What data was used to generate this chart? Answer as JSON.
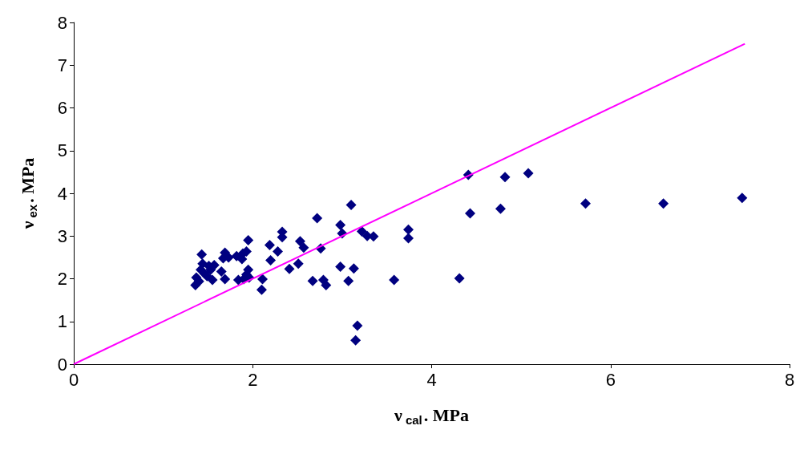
{
  "chart_data": {
    "type": "scatter",
    "xlabel": "ν$_{cal}$. MPa",
    "ylabel": "ν$_{ex}$. MPa",
    "xlim": [
      0,
      8
    ],
    "xticks": [
      0,
      2,
      4,
      6,
      8
    ],
    "ylim": [
      0,
      8
    ],
    "yticks": [
      0,
      1,
      2,
      3,
      4,
      5,
      6,
      7,
      8
    ],
    "grid": false,
    "series": [
      {
        "color": "#000080",
        "marker": "diamond",
        "x": [
          1.36,
          1.37,
          1.43,
          1.42,
          1.46,
          1.4,
          1.51,
          1.44,
          1.49,
          1.53,
          1.57,
          1.55,
          1.65,
          1.67,
          1.69,
          1.69,
          1.73,
          1.82,
          1.84,
          1.88,
          1.89,
          1.93,
          1.93,
          1.95,
          1.95,
          1.96,
          1.9,
          2.1,
          2.11,
          2.19,
          2.2,
          2.28,
          2.33,
          2.33,
          2.41,
          2.51,
          2.53,
          2.57,
          2.67,
          2.72,
          2.76,
          2.79,
          2.82,
          2.98,
          2.98,
          3.0,
          3.07,
          3.1,
          3.13,
          3.17,
          3.15,
          3.22,
          3.28,
          3.35,
          3.58,
          3.74,
          3.74,
          4.31,
          4.41,
          4.43,
          4.82,
          4.77,
          5.08,
          5.72,
          6.59,
          7.47
        ],
        "values": [
          1.85,
          2.03,
          2.57,
          2.21,
          2.12,
          1.94,
          2.3,
          2.35,
          2.06,
          2.21,
          2.32,
          1.97,
          2.17,
          2.48,
          2.61,
          1.99,
          2.5,
          2.53,
          1.97,
          2.46,
          2.59,
          2.64,
          2.1,
          2.9,
          2.21,
          2.03,
          1.99,
          1.74,
          1.99,
          2.79,
          2.43,
          2.64,
          2.97,
          3.1,
          2.23,
          2.35,
          2.88,
          2.73,
          1.95,
          3.42,
          2.71,
          1.97,
          1.85,
          2.28,
          3.26,
          3.06,
          1.95,
          3.73,
          2.24,
          0.9,
          0.56,
          3.11,
          3.0,
          2.99,
          1.97,
          3.15,
          2.95,
          2.01,
          4.43,
          3.53,
          4.38,
          3.64,
          4.47,
          3.76,
          3.76,
          3.89
        ]
      },
      {
        "type": "line",
        "color": "#ff00ff",
        "marker": "none",
        "line_style": "solid",
        "x": [
          0,
          7.5
        ],
        "values": [
          0,
          7.5
        ]
      }
    ]
  }
}
